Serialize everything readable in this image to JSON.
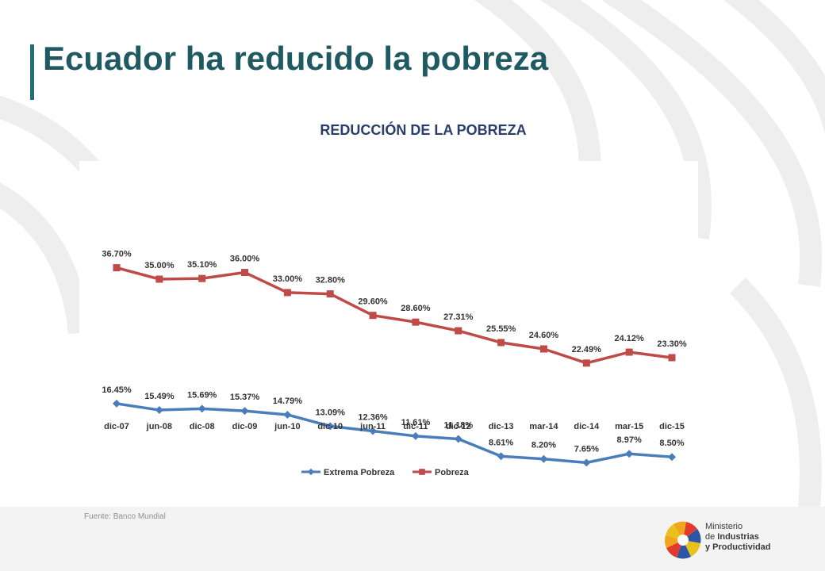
{
  "slide": {
    "title": "Ecuador ha reducido la pobreza",
    "source": "Fuente: Banco Mundial"
  },
  "logo": {
    "line1": "Ministerio",
    "line2_prefix": "de ",
    "line2_bold": "Industrias",
    "line3": "y Productividad"
  },
  "chart_data": {
    "type": "line",
    "title": "REDUCCIÓN DE LA POBREZA",
    "xlabel": "",
    "ylabel": "",
    "categories": [
      "dic-07",
      "jun-08",
      "dic-08",
      "dic-09",
      "jun-10",
      "dic-10",
      "jun-11",
      "dic-11",
      "dic-12",
      "dic-13",
      "mar-14",
      "dic-14",
      "mar-15",
      "dic-15"
    ],
    "series": [
      {
        "name": "Extrema Pobreza",
        "values": [
          16.45,
          15.49,
          15.69,
          15.37,
          14.79,
          13.09,
          12.36,
          11.61,
          11.18,
          8.61,
          8.2,
          7.65,
          8.97,
          8.5
        ],
        "labels": [
          "16.45%",
          "15.49%",
          "15.69%",
          "15.37%",
          "14.79%",
          "13.09%",
          "12.36%",
          "11.61%",
          "11.18%",
          "8.61%",
          "8.20%",
          "7.65%",
          "8.97%",
          "8.50%"
        ],
        "color": "#4a7ebb",
        "marker": "diamond"
      },
      {
        "name": "Pobreza",
        "values": [
          36.7,
          35.0,
          35.1,
          36.0,
          33.0,
          32.8,
          29.6,
          28.6,
          27.31,
          25.55,
          24.6,
          22.49,
          24.12,
          23.3
        ],
        "labels": [
          "36.70%",
          "35.00%",
          "35.10%",
          "36.00%",
          "33.00%",
          "32.80%",
          "29.60%",
          "28.60%",
          "27.31%",
          "25.55%",
          "24.60%",
          "22.49%",
          "24.12%",
          "23.30%"
        ],
        "color": "#be4b48",
        "marker": "square"
      }
    ],
    "grid": false,
    "legend": "bottom-center"
  }
}
